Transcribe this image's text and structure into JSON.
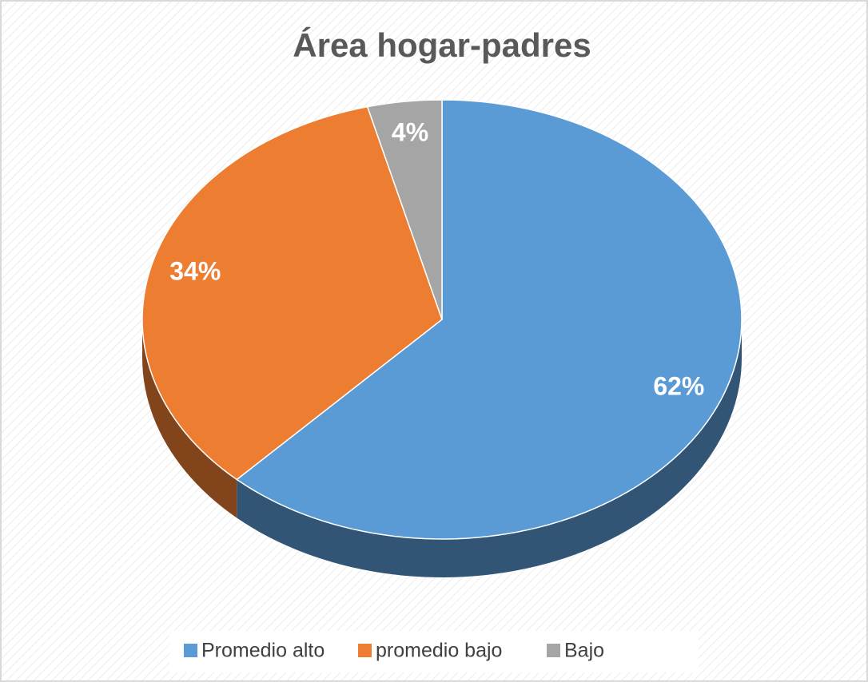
{
  "chart_data": {
    "type": "pie",
    "title": "Área hogar-padres",
    "categories": [
      "Promedio alto",
      "promedio bajo",
      "Bajo"
    ],
    "values": [
      62,
      34,
      4
    ],
    "value_labels": [
      "62%",
      "34%",
      "4%"
    ],
    "colors": [
      "#5b9bd5",
      "#ed7d31",
      "#a5a5a5"
    ],
    "legend": "bottom"
  }
}
